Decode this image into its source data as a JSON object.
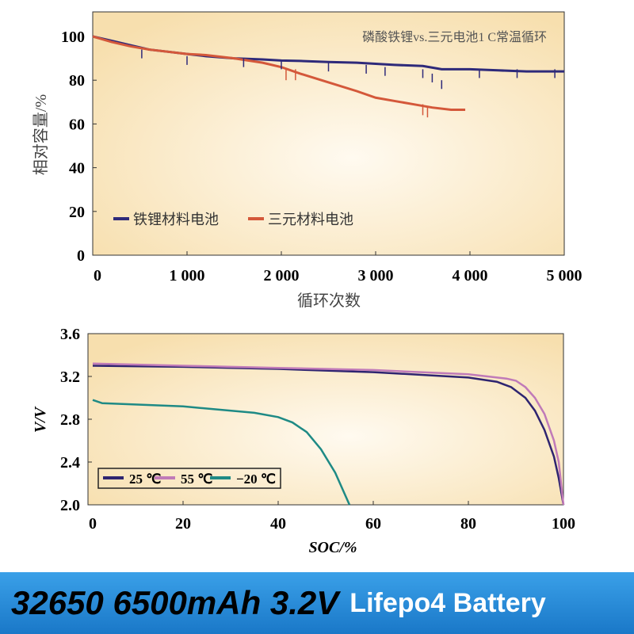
{
  "chart_data": [
    {
      "type": "line",
      "title": "磷酸铁锂vs.三元电池1 C常温循环",
      "xlabel": "循环次数",
      "ylabel": "相对容量/%",
      "xlim": [
        0,
        5000
      ],
      "ylim": [
        0,
        110
      ],
      "xticks": [
        "0",
        "1 000",
        "2 000",
        "3 000",
        "4 000",
        "5 000"
      ],
      "xtick_values": [
        0,
        1000,
        2000,
        3000,
        4000,
        5000
      ],
      "yticks": [
        "0",
        "20",
        "40",
        "60",
        "80",
        "100"
      ],
      "ytick_values": [
        0,
        20,
        40,
        60,
        80,
        100
      ],
      "legend_position": "bottom-left",
      "series": [
        {
          "name": "铁锂材料电池",
          "color": "#2e2a7a",
          "x": [
            0,
            200,
            400,
            600,
            800,
            1000,
            1200,
            1500,
            1800,
            2000,
            2200,
            2500,
            2800,
            3000,
            3200,
            3500,
            3700,
            4000,
            4300,
            4600,
            4800,
            5000
          ],
          "y": [
            100,
            98,
            96,
            94,
            93,
            92,
            91,
            90,
            89.5,
            89,
            88.8,
            88.3,
            88,
            87.5,
            87,
            86.5,
            85,
            85,
            84.5,
            84,
            84,
            84
          ]
        },
        {
          "name": "三元材料电池",
          "color": "#d4583a",
          "x": [
            0,
            200,
            400,
            600,
            800,
            1000,
            1200,
            1500,
            1800,
            2000,
            2200,
            2500,
            2800,
            3000,
            3200,
            3400,
            3600,
            3800,
            3950
          ],
          "y": [
            100,
            97.5,
            95.5,
            94,
            93,
            92,
            91.5,
            90,
            88,
            86,
            83,
            79,
            75,
            72,
            70.5,
            69,
            67.5,
            66.5,
            66.5
          ]
        }
      ]
    },
    {
      "type": "line",
      "xlabel": "SOC/%",
      "ylabel": "V/V",
      "xlim": [
        0,
        100
      ],
      "ylim": [
        2.0,
        3.6
      ],
      "xticks": [
        "0",
        "20",
        "40",
        "60",
        "80",
        "100"
      ],
      "xtick_values": [
        0,
        20,
        40,
        60,
        80,
        100
      ],
      "yticks": [
        "2.0",
        "2.4",
        "2.8",
        "3.2",
        "3.6"
      ],
      "ytick_values": [
        2.0,
        2.4,
        2.8,
        3.2,
        3.6
      ],
      "legend_position": "bottom-left",
      "series": [
        {
          "name": "25 ℃",
          "color": "#2e2470",
          "x": [
            1,
            20,
            40,
            60,
            80,
            86,
            89,
            92,
            94,
            96,
            98,
            99,
            100
          ],
          "y": [
            3.3,
            3.29,
            3.27,
            3.24,
            3.19,
            3.15,
            3.1,
            3.0,
            2.88,
            2.7,
            2.45,
            2.25,
            2.0
          ]
        },
        {
          "name": "55 ℃",
          "color": "#c07ab8",
          "x": [
            1,
            20,
            40,
            60,
            80,
            88,
            90,
            92,
            94,
            96,
            98,
            99,
            100
          ],
          "y": [
            3.32,
            3.3,
            3.28,
            3.26,
            3.22,
            3.18,
            3.16,
            3.1,
            3.0,
            2.85,
            2.6,
            2.4,
            2.0
          ]
        },
        {
          "name": "−20 ℃",
          "color": "#1e8a85",
          "x": [
            1,
            3,
            20,
            35,
            40,
            43,
            46,
            49,
            52,
            54,
            55
          ],
          "y": [
            2.98,
            2.95,
            2.92,
            2.86,
            2.82,
            2.77,
            2.68,
            2.52,
            2.3,
            2.1,
            2.0
          ]
        }
      ]
    }
  ],
  "banner": {
    "model": "32650 6500mAh 3.2V",
    "type": "Lifepo4 Battery"
  }
}
